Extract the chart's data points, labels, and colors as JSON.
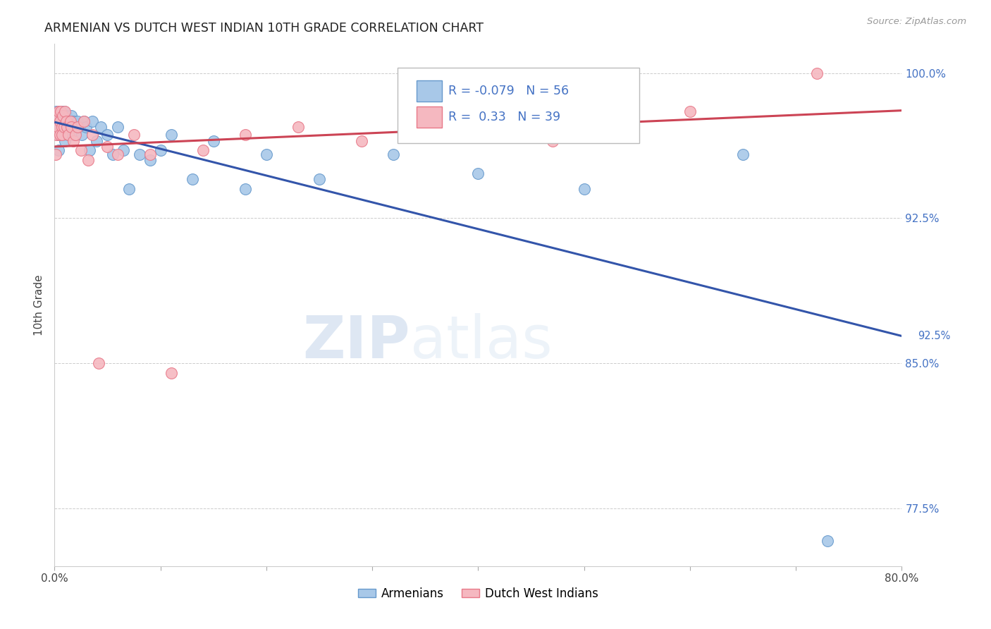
{
  "title": "ARMENIAN VS DUTCH WEST INDIAN 10TH GRADE CORRELATION CHART",
  "source": "Source: ZipAtlas.com",
  "ylabel": "10th Grade",
  "xlim": [
    0.0,
    0.8
  ],
  "ylim": [
    0.745,
    1.015
  ],
  "xticks": [
    0.0,
    0.1,
    0.2,
    0.3,
    0.4,
    0.5,
    0.6,
    0.7,
    0.8
  ],
  "xticklabels": [
    "0.0%",
    "",
    "",
    "",
    "",
    "",
    "",
    "",
    "80.0%"
  ],
  "yticks_right": [
    0.775,
    0.85,
    0.925,
    1.0
  ],
  "ytick_right_labels": [
    "77.5%",
    "85.0%",
    "92.5%",
    "100.0%"
  ],
  "armenian_color": "#a8c8e8",
  "armenian_edge_color": "#6699cc",
  "dutch_color": "#f5b8c0",
  "dutch_edge_color": "#e87888",
  "armenian_line_color": "#3355aa",
  "dutch_line_color": "#cc4455",
  "R_armenian": -0.079,
  "N_armenian": 56,
  "R_dutch": 0.33,
  "N_dutch": 39,
  "watermark_zip": "ZIP",
  "watermark_atlas": "atlas",
  "background_color": "#ffffff",
  "grid_color": "#cccccc",
  "armenian_x": [
    0.001,
    0.002,
    0.003,
    0.003,
    0.004,
    0.004,
    0.005,
    0.005,
    0.006,
    0.006,
    0.007,
    0.007,
    0.008,
    0.008,
    0.009,
    0.009,
    0.01,
    0.01,
    0.011,
    0.012,
    0.013,
    0.014,
    0.015,
    0.016,
    0.017,
    0.018,
    0.019,
    0.02,
    0.022,
    0.024,
    0.026,
    0.028,
    0.03,
    0.033,
    0.036,
    0.04,
    0.044,
    0.05,
    0.055,
    0.06,
    0.065,
    0.07,
    0.08,
    0.09,
    0.1,
    0.11,
    0.13,
    0.15,
    0.18,
    0.2,
    0.25,
    0.32,
    0.4,
    0.5,
    0.65,
    0.73
  ],
  "armenian_y": [
    0.975,
    0.98,
    0.968,
    0.972,
    0.978,
    0.96,
    0.975,
    0.97,
    0.98,
    0.972,
    0.975,
    0.968,
    0.978,
    0.972,
    0.98,
    0.968,
    0.975,
    0.965,
    0.978,
    0.972,
    0.968,
    0.975,
    0.972,
    0.978,
    0.968,
    0.975,
    0.972,
    0.968,
    0.975,
    0.972,
    0.968,
    0.975,
    0.972,
    0.96,
    0.975,
    0.965,
    0.972,
    0.968,
    0.958,
    0.972,
    0.96,
    0.94,
    0.958,
    0.955,
    0.96,
    0.968,
    0.945,
    0.965,
    0.94,
    0.958,
    0.945,
    0.958,
    0.948,
    0.94,
    0.958,
    0.758
  ],
  "dutch_x": [
    0.001,
    0.002,
    0.003,
    0.003,
    0.004,
    0.005,
    0.005,
    0.006,
    0.007,
    0.007,
    0.008,
    0.009,
    0.01,
    0.011,
    0.012,
    0.013,
    0.015,
    0.016,
    0.018,
    0.02,
    0.022,
    0.025,
    0.028,
    0.032,
    0.036,
    0.042,
    0.05,
    0.06,
    0.075,
    0.09,
    0.11,
    0.14,
    0.18,
    0.23,
    0.29,
    0.37,
    0.47,
    0.6,
    0.72
  ],
  "dutch_y": [
    0.958,
    0.968,
    0.978,
    0.972,
    0.98,
    0.968,
    0.975,
    0.98,
    0.972,
    0.968,
    0.978,
    0.972,
    0.98,
    0.975,
    0.972,
    0.968,
    0.975,
    0.972,
    0.965,
    0.968,
    0.972,
    0.96,
    0.975,
    0.955,
    0.968,
    0.85,
    0.962,
    0.958,
    0.968,
    0.958,
    0.845,
    0.96,
    0.968,
    0.972,
    0.965,
    0.978,
    0.965,
    0.98,
    1.0
  ]
}
